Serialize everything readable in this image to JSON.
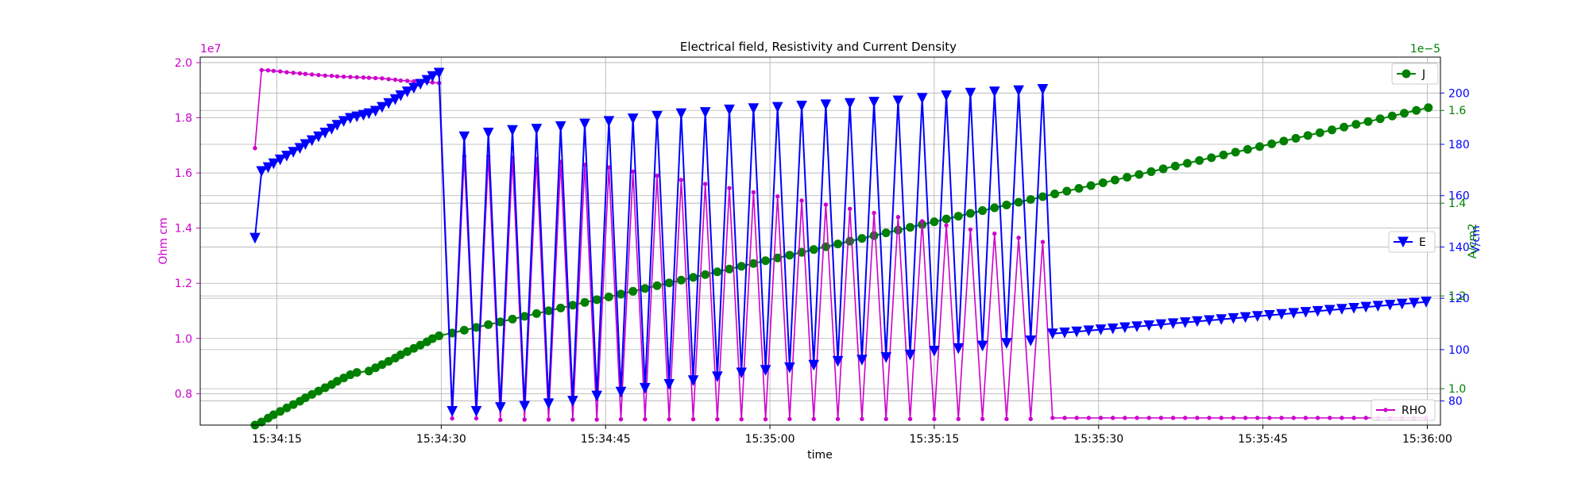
{
  "chart_data": {
    "type": "line",
    "title": "Electrical field, Resistivity and Current Density",
    "xlabel": "time",
    "x_ticks": [
      "15:34:15",
      "15:34:30",
      "15:34:45",
      "15:35:00",
      "15:35:15",
      "15:35:30",
      "15:35:45",
      "15:36:00"
    ],
    "x_tick_values": [
      15,
      30,
      45,
      60,
      75,
      90,
      105,
      120
    ],
    "xlim": [
      8.0,
      121.2
    ],
    "grid": true,
    "axes": {
      "rho": {
        "ylabel": "Ohm cm",
        "ylim": [
          0.686,
          2.02
        ],
        "ticks": [
          "0.8",
          "1.0",
          "1.2",
          "1.4",
          "1.6",
          "1.8",
          "2.0"
        ],
        "tick_values": [
          0.8,
          1.0,
          1.2,
          1.4,
          1.6,
          1.8,
          2.0
        ],
        "offset_label": "1e7",
        "color": "#cc00cc"
      },
      "e": {
        "ylabel": "V/cm",
        "ylim": [
          70.6,
          214.0
        ],
        "ticks": [
          "80",
          "100",
          "120",
          "140",
          "160",
          "180",
          "200"
        ],
        "tick_values": [
          80,
          100,
          120,
          140,
          160,
          180,
          200
        ],
        "color": "#0000ff"
      },
      "j": {
        "ylabel": "A/cm2",
        "ylim": [
          0.9215,
          1.715
        ],
        "ticks": [
          "1.0",
          "1.2",
          "1.4",
          "1.6"
        ],
        "tick_values": [
          1.0,
          1.2,
          1.4,
          1.6
        ],
        "offset_label": "1e−5",
        "color": "#008000"
      }
    },
    "series": [
      {
        "name": "RHO",
        "axis": "rho",
        "color": "#cc00cc",
        "marker": "dot",
        "legend_position": "lower-right",
        "x": [
          13.0,
          13.6,
          14.2,
          14.7,
          15.3,
          15.9,
          16.5,
          17.1,
          17.6,
          18.2,
          18.8,
          19.4,
          20.0,
          20.5,
          21.1,
          21.7,
          22.3,
          22.9,
          23.4,
          24.0,
          24.6,
          25.2,
          25.8,
          26.3,
          26.9,
          27.5,
          28.1,
          28.7,
          29.2,
          29.8,
          31.0,
          32.1,
          33.2,
          34.3,
          35.4,
          36.5,
          37.6,
          38.7,
          39.8,
          40.9,
          42.0,
          43.1,
          44.2,
          45.3,
          46.4,
          47.5,
          48.6,
          49.7,
          50.8,
          51.9,
          53.0,
          54.1,
          55.2,
          56.3,
          57.4,
          58.5,
          59.6,
          60.7,
          61.8,
          62.9,
          64.0,
          65.1,
          66.2,
          67.3,
          68.4,
          69.5,
          70.6,
          71.7,
          72.8,
          73.9,
          75.0,
          76.1,
          77.2,
          78.3,
          79.4,
          80.5,
          81.6,
          82.7,
          83.8,
          84.9,
          85.8,
          86.9,
          88.0,
          89.1,
          90.2,
          91.3,
          92.4,
          93.5,
          94.6,
          95.7,
          96.8,
          97.9,
          99.0,
          100.1,
          101.2,
          102.3,
          103.4,
          104.5,
          105.6,
          106.7,
          107.8,
          108.9,
          110.0,
          111.1,
          112.2,
          113.3,
          114.4,
          115.5,
          116.6,
          117.7,
          118.8,
          119.9
        ],
        "y": [
          1.69,
          1.973,
          1.972,
          1.97,
          1.968,
          1.965,
          1.963,
          1.961,
          1.959,
          1.957,
          1.955,
          1.953,
          1.952,
          1.95,
          1.949,
          1.948,
          1.947,
          1.946,
          1.945,
          1.944,
          1.943,
          1.94,
          1.938,
          1.935,
          1.934,
          1.932,
          1.93,
          1.929,
          1.928,
          1.926,
          0.71,
          1.66,
          0.71,
          1.66,
          0.705,
          1.655,
          0.706,
          1.65,
          0.706,
          1.64,
          0.706,
          1.63,
          0.706,
          1.62,
          0.707,
          1.605,
          0.707,
          1.59,
          0.707,
          1.575,
          0.707,
          1.56,
          0.707,
          1.545,
          0.707,
          1.53,
          0.707,
          1.515,
          0.708,
          1.5,
          0.708,
          1.485,
          0.708,
          1.47,
          0.708,
          1.455,
          0.708,
          1.44,
          0.708,
          1.425,
          0.708,
          1.41,
          0.708,
          1.395,
          0.708,
          1.38,
          0.708,
          1.365,
          0.708,
          1.35,
          0.712,
          0.712,
          0.712,
          0.712,
          0.712,
          0.712,
          0.712,
          0.712,
          0.712,
          0.712,
          0.712,
          0.712,
          0.712,
          0.712,
          0.712,
          0.712,
          0.712,
          0.712,
          0.712,
          0.712,
          0.712,
          0.712,
          0.712,
          0.712,
          0.712,
          0.712,
          0.712,
          0.712,
          0.712,
          0.712,
          0.712,
          0.712
        ]
      },
      {
        "name": "E",
        "axis": "e",
        "color": "#0000ff",
        "marker": "triangle-down",
        "legend_position": "center-right",
        "x": [
          13.0,
          13.6,
          14.2,
          14.7,
          15.3,
          15.9,
          16.5,
          17.1,
          17.6,
          18.2,
          18.8,
          19.4,
          20.0,
          20.5,
          21.1,
          21.7,
          22.3,
          22.9,
          23.4,
          24.0,
          24.6,
          25.2,
          25.8,
          26.3,
          26.9,
          27.5,
          28.1,
          28.7,
          29.2,
          29.8,
          31.0,
          32.1,
          33.2,
          34.3,
          35.4,
          36.5,
          37.6,
          38.7,
          39.8,
          40.9,
          42.0,
          43.1,
          44.2,
          45.3,
          46.4,
          47.5,
          48.6,
          49.7,
          50.8,
          51.9,
          53.0,
          54.1,
          55.2,
          56.3,
          57.4,
          58.5,
          59.6,
          60.7,
          61.8,
          62.9,
          64.0,
          65.1,
          66.2,
          67.3,
          68.4,
          69.5,
          70.6,
          71.7,
          72.8,
          73.9,
          75.0,
          76.1,
          77.2,
          78.3,
          79.4,
          80.5,
          81.6,
          82.7,
          83.8,
          84.9,
          85.8,
          86.9,
          88.0,
          89.1,
          90.2,
          91.3,
          92.4,
          93.5,
          94.6,
          95.7,
          96.8,
          97.9,
          99.0,
          100.1,
          101.2,
          102.3,
          103.4,
          104.5,
          105.6,
          106.7,
          107.8,
          108.9,
          110.0,
          111.1,
          112.2,
          113.3,
          114.4,
          115.5,
          116.6,
          117.7,
          118.8,
          119.9
        ],
        "y": [
          143.5,
          169.5,
          171.0,
          172.5,
          174.0,
          175.5,
          177.0,
          178.5,
          180.0,
          181.5,
          183.0,
          184.5,
          186.0,
          187.5,
          189.0,
          190.2,
          190.8,
          191.4,
          192.0,
          193.0,
          194.5,
          196.0,
          197.5,
          199.0,
          200.5,
          202.0,
          203.5,
          205.0,
          206.5,
          207.8,
          76.0,
          183.0,
          76.0,
          184.5,
          77.5,
          185.5,
          78.0,
          186.0,
          79.0,
          187.0,
          80.0,
          188.0,
          82.0,
          189.0,
          83.5,
          190.0,
          85.0,
          191.0,
          86.5,
          192.0,
          88.0,
          192.5,
          89.5,
          193.5,
          91.0,
          194.0,
          92.0,
          194.5,
          93.0,
          195.0,
          94.0,
          195.5,
          95.5,
          196.0,
          96.0,
          196.5,
          97.0,
          197.0,
          98.0,
          198.0,
          99.5,
          199.0,
          100.5,
          200.0,
          101.5,
          200.5,
          102.5,
          201.0,
          103.5,
          201.5,
          106.2,
          106.6,
          107.0,
          107.4,
          107.8,
          108.2,
          108.6,
          109.0,
          109.4,
          109.8,
          110.2,
          110.6,
          111.0,
          111.4,
          111.8,
          112.2,
          112.6,
          113.0,
          113.4,
          113.8,
          114.2,
          114.6,
          115.0,
          115.4,
          115.8,
          116.2,
          116.6,
          117.0,
          117.4,
          117.8,
          118.2,
          118.6
        ]
      },
      {
        "name": "J",
        "axis": "j",
        "color": "#008000",
        "marker": "circle",
        "legend_position": "upper-right",
        "x": [
          13.0,
          13.6,
          14.2,
          14.7,
          15.3,
          15.9,
          16.5,
          17.1,
          17.6,
          18.2,
          18.8,
          19.4,
          20.0,
          20.5,
          21.1,
          21.7,
          22.3,
          23.4,
          24.0,
          24.6,
          25.2,
          25.8,
          26.3,
          26.9,
          27.5,
          28.1,
          28.7,
          29.2,
          29.8,
          31.0,
          32.1,
          33.2,
          34.3,
          35.4,
          36.5,
          37.6,
          38.7,
          39.8,
          40.9,
          42.0,
          43.1,
          44.2,
          45.3,
          46.4,
          47.5,
          48.6,
          49.7,
          50.8,
          51.9,
          53.0,
          54.1,
          55.2,
          56.3,
          57.4,
          58.5,
          59.6,
          60.7,
          61.8,
          62.9,
          64.0,
          65.1,
          66.2,
          67.3,
          68.4,
          69.5,
          70.6,
          71.7,
          72.8,
          73.9,
          75.0,
          76.1,
          77.2,
          78.3,
          79.4,
          80.5,
          81.6,
          82.7,
          83.8,
          84.9,
          86.0,
          87.1,
          88.2,
          89.3,
          90.4,
          91.5,
          92.6,
          93.7,
          94.8,
          95.9,
          97.0,
          98.1,
          99.2,
          100.3,
          101.4,
          102.5,
          103.6,
          104.7,
          105.8,
          106.9,
          108.0,
          109.1,
          110.2,
          111.3,
          112.4,
          113.5,
          114.6,
          115.7,
          116.8,
          117.9,
          119.0,
          120.1
        ],
        "y": [
          0.9215,
          0.9282,
          0.9365,
          0.9438,
          0.9511,
          0.9584,
          0.9657,
          0.973,
          0.9803,
          0.9876,
          0.9949,
          1.002,
          1.009,
          1.016,
          1.023,
          1.03,
          1.035,
          1.038,
          1.045,
          1.052,
          1.059,
          1.066,
          1.073,
          1.08,
          1.087,
          1.094,
          1.101,
          1.108,
          1.114,
          1.12,
          1.126,
          1.132,
          1.138,
          1.144,
          1.15,
          1.156,
          1.162,
          1.168,
          1.174,
          1.18,
          1.186,
          1.192,
          1.198,
          1.204,
          1.21,
          1.216,
          1.222,
          1.228,
          1.234,
          1.24,
          1.246,
          1.252,
          1.258,
          1.264,
          1.27,
          1.276,
          1.282,
          1.288,
          1.294,
          1.3,
          1.306,
          1.312,
          1.318,
          1.324,
          1.33,
          1.336,
          1.342,
          1.348,
          1.354,
          1.36,
          1.366,
          1.372,
          1.378,
          1.384,
          1.39,
          1.396,
          1.402,
          1.408,
          1.414,
          1.42,
          1.426,
          1.432,
          1.438,
          1.444,
          1.45,
          1.456,
          1.462,
          1.468,
          1.474,
          1.48,
          1.486,
          1.492,
          1.498,
          1.504,
          1.51,
          1.516,
          1.522,
          1.528,
          1.534,
          1.54,
          1.546,
          1.552,
          1.558,
          1.564,
          1.57,
          1.576,
          1.582,
          1.588,
          1.594,
          1.6,
          1.606
        ]
      }
    ]
  }
}
